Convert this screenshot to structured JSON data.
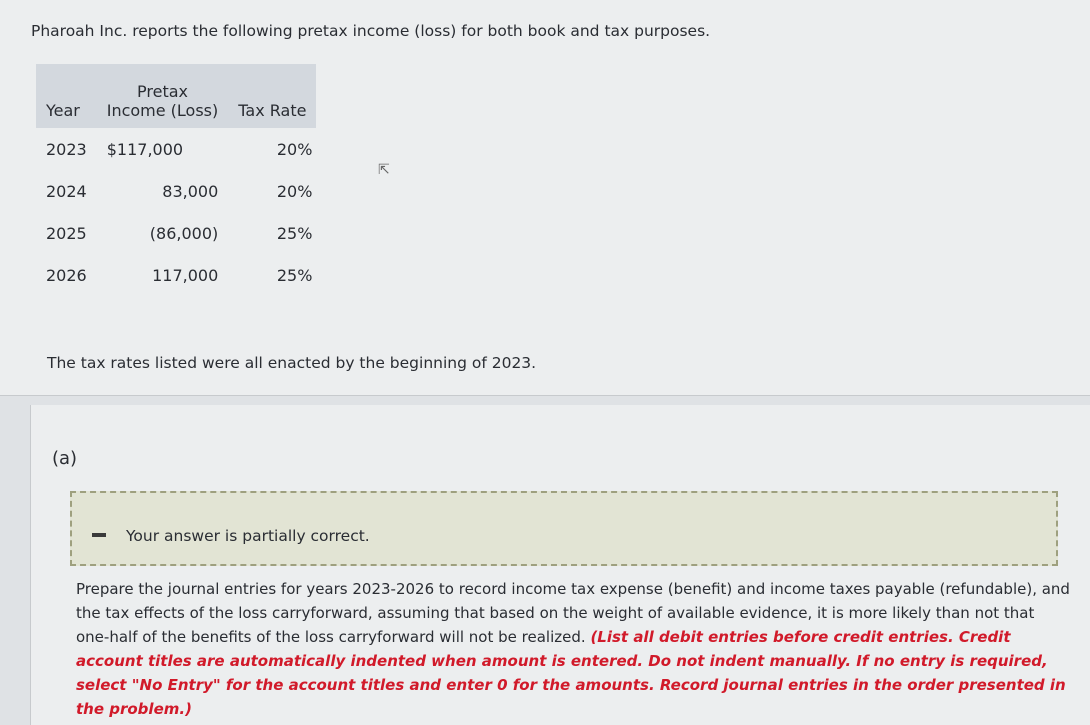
{
  "question": {
    "intro": "Pharoah Inc. reports the following pretax income (loss) for both book and tax purposes.",
    "table": {
      "headers": [
        "Year",
        "Pretax Income (Loss)",
        "Tax Rate"
      ],
      "header_lines": {
        "pretax_line1": "Pretax",
        "pretax_line2": "Income (Loss)"
      },
      "rows": [
        {
          "year": "2023",
          "income": "$117,000",
          "rate": "20%"
        },
        {
          "year": "2024",
          "income": "83,000",
          "rate": "20%"
        },
        {
          "year": "2025",
          "income": "(86,000)",
          "rate": "25%"
        },
        {
          "year": "2026",
          "income": "117,000",
          "rate": "25%"
        }
      ]
    },
    "note": "The tax rates listed were all enacted by the beginning of 2023."
  },
  "part": {
    "label": "(a)",
    "feedback": "Your answer is partially correct.",
    "feedback_status": "partial",
    "prompt": "Prepare the journal entries for years 2023-2026 to record income tax expense (benefit) and income taxes payable (refundable), and the tax effects of the loss carryforward, assuming that based on the weight of available evidence, it is more likely than not that one-half of the benefits of the loss carryforward will not be realized.",
    "instructions": "(List all debit entries before credit entries. Credit account titles are automatically indented when amount is entered. Do not indent manually. If no entry is required, select \"No Entry\" for the account titles and enter 0 for the amounts. Record journal entries in the order presented in the problem.)"
  },
  "colors": {
    "instruction_red": "#d11a2a",
    "feedback_bg": "#e2e4d4",
    "table_header_bg": "#d3d8de"
  }
}
